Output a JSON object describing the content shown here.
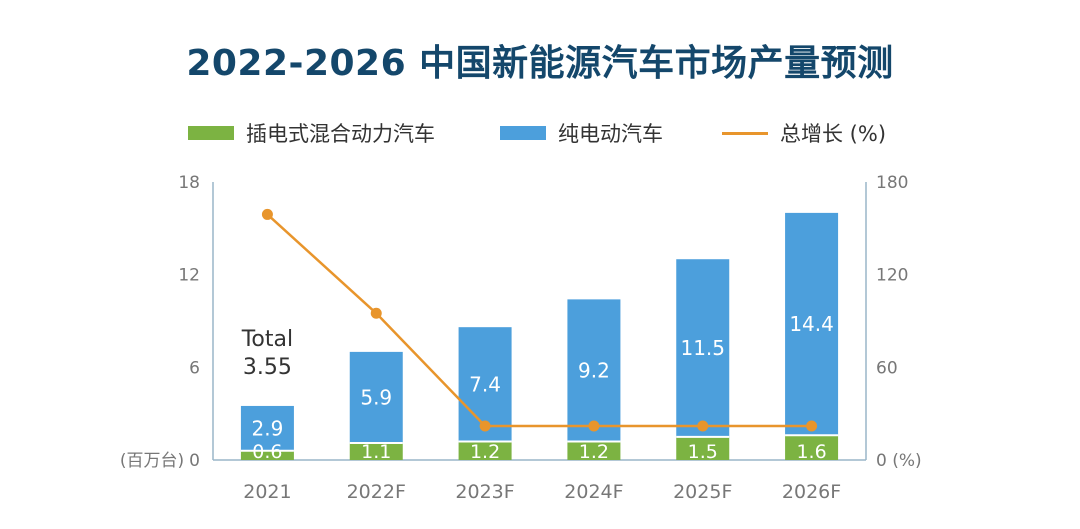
{
  "chart_data": {
    "type": "bar",
    "title": "2022-2026 中国新能源汽车市场产量预测",
    "categories": [
      "2021",
      "2022F",
      "2023F",
      "2024F",
      "2025F",
      "2026F"
    ],
    "series": [
      {
        "name": "插电式混合动力汽车",
        "kind": "bar",
        "axis": "left",
        "values": [
          0.6,
          1.1,
          1.2,
          1.2,
          1.5,
          1.6
        ],
        "color": "#7cb342"
      },
      {
        "name": "纯电动汽车",
        "kind": "bar",
        "axis": "left",
        "values": [
          2.9,
          5.9,
          7.4,
          9.2,
          11.5,
          14.4
        ],
        "color": "#4c9fdc"
      },
      {
        "name": "总增长 (%)",
        "kind": "line",
        "axis": "right",
        "values": [
          159,
          95,
          22,
          22,
          22,
          22
        ],
        "color": "#e8952c"
      }
    ],
    "left_axis": {
      "label": "(百万台)",
      "ticks": [
        "0",
        "6",
        "12",
        "18"
      ],
      "ylim": [
        0,
        18
      ]
    },
    "right_axis": {
      "label": "(%)",
      "ticks": [
        "0",
        "60",
        "120",
        "180"
      ],
      "ylim": [
        0,
        180
      ]
    },
    "annotation": {
      "line1": "Total",
      "line2": "3.55"
    },
    "legend_position": "top",
    "grid": false
  }
}
